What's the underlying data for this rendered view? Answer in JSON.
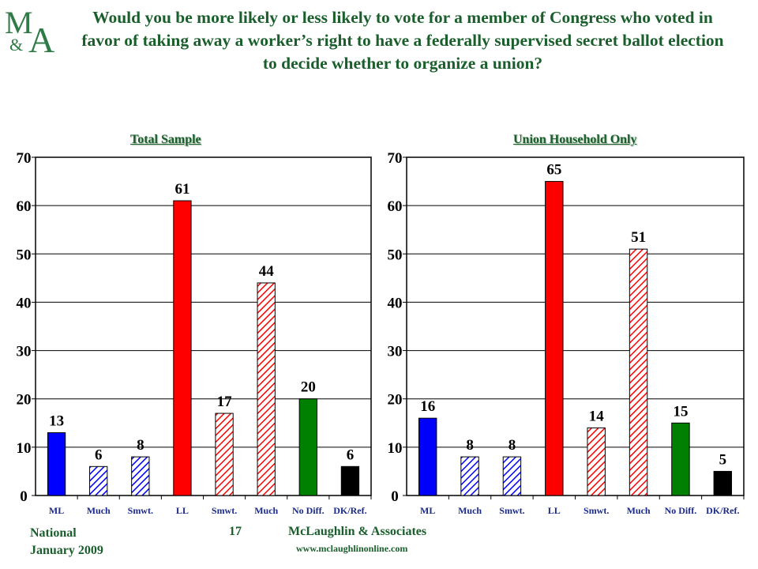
{
  "title": "Would you be more likely or less likely to vote for a member of Congress who voted in favor of taking away a worker’s right to have a federally supervised secret ballot election to decide whether to organize a union?",
  "logo": {
    "text": "M&A"
  },
  "colors": {
    "title": "#1a5e2c",
    "blue": "#0000ff",
    "red": "#ff0000",
    "green": "#008000",
    "black": "#000000"
  },
  "chart_data": [
    {
      "type": "bar",
      "title": "Total Sample",
      "categories": [
        "ML",
        "Much",
        "Smwt.",
        "LL",
        "Smwt.",
        "Much",
        "No Diff.",
        "DK/Ref."
      ],
      "values": [
        13,
        6,
        8,
        61,
        17,
        44,
        20,
        6
      ],
      "value_labels": [
        "13",
        "6",
        "8",
        "61",
        "17",
        "44",
        "20",
        "6"
      ],
      "bar_colors": [
        "blue",
        "blue",
        "blue",
        "red",
        "red",
        "red",
        "green",
        "black"
      ],
      "bar_fills": [
        "solid",
        "hatched",
        "hatched",
        "solid",
        "hatched",
        "hatched",
        "solid",
        "solid"
      ],
      "ylim": [
        0,
        70
      ],
      "yticks": [
        0,
        10,
        20,
        30,
        40,
        50,
        60,
        70
      ],
      "grid": true
    },
    {
      "type": "bar",
      "title": "Union Household Only",
      "categories": [
        "ML",
        "Much",
        "Smwt.",
        "LL",
        "Smwt.",
        "Much",
        "No Diff.",
        "DK/Ref."
      ],
      "values": [
        16,
        8,
        8,
        65,
        14,
        51,
        15,
        5
      ],
      "value_labels": [
        "16",
        "8",
        "8",
        "65",
        "14",
        "51",
        "15",
        "5"
      ],
      "bar_colors": [
        "blue",
        "blue",
        "blue",
        "red",
        "red",
        "red",
        "green",
        "black"
      ],
      "bar_fills": [
        "solid",
        "hatched",
        "hatched",
        "solid",
        "hatched",
        "hatched",
        "solid",
        "solid"
      ],
      "ylim": [
        0,
        70
      ],
      "yticks": [
        0,
        10,
        20,
        30,
        40,
        50,
        60,
        70
      ],
      "grid": true
    }
  ],
  "footer": {
    "survey": "National",
    "date": "January 2009",
    "page": "17",
    "company": "McLaughlin & Associates",
    "url": "www.mclaughlinonline.com"
  }
}
